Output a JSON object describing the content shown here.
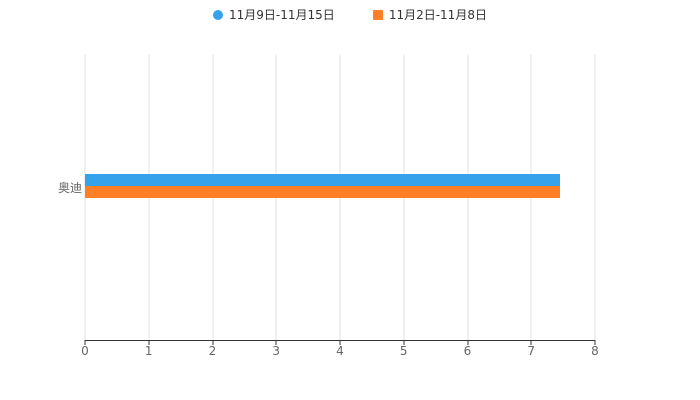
{
  "chart_data": {
    "type": "bar",
    "orientation": "horizontal",
    "title": "",
    "categories": [
      "奥迪"
    ],
    "series": [
      {
        "name": "11月9日-11月15日",
        "color": "#36A2EB",
        "marker": "circle",
        "values": [
          7.45
        ]
      },
      {
        "name": "11月2日-11月8日",
        "color": "#FF7F27",
        "marker": "square",
        "values": [
          7.45
        ]
      }
    ],
    "xlabel": "",
    "ylabel": "",
    "xlim": [
      0,
      8
    ],
    "xticks": [
      0,
      1,
      2,
      3,
      4,
      5,
      6,
      7,
      8
    ],
    "grid": true,
    "legend_position": "top"
  },
  "colors": {
    "background": "#ffffff",
    "axis_line": "#333333",
    "grid_line": "#e0e0e0",
    "tick_text": "#666666",
    "legend_text": "#333333"
  }
}
